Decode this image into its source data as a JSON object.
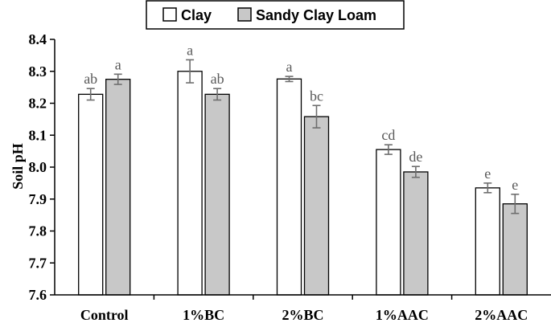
{
  "chart_data": {
    "type": "bar",
    "ylabel": "Soil pH",
    "xlabel": "",
    "ylim": [
      7.6,
      8.4
    ],
    "yticks": [
      "7.6",
      "7.7",
      "7.8",
      "7.9",
      "8.0",
      "8.1",
      "8.2",
      "8.3",
      "8.4"
    ],
    "categories": [
      "Control",
      "1%BC",
      "2%BC",
      "1%AAC",
      "2%AAC"
    ],
    "legend_position": "top-center",
    "grid": false,
    "series": [
      {
        "name": "Clay",
        "color": "#ffffff",
        "values": [
          8.228,
          8.3,
          8.276,
          8.055,
          7.935
        ],
        "errors": [
          0.018,
          0.036,
          0.008,
          0.015,
          0.015
        ],
        "labels": [
          "ab",
          "a",
          "a",
          "cd",
          "e"
        ]
      },
      {
        "name": "Sandy Clay Loam",
        "color": "#c8c8c8",
        "values": [
          8.275,
          8.228,
          8.158,
          7.985,
          7.885
        ],
        "errors": [
          0.016,
          0.018,
          0.035,
          0.017,
          0.03
        ],
        "labels": [
          "a",
          "ab",
          "bc",
          "de",
          "e"
        ]
      }
    ]
  }
}
